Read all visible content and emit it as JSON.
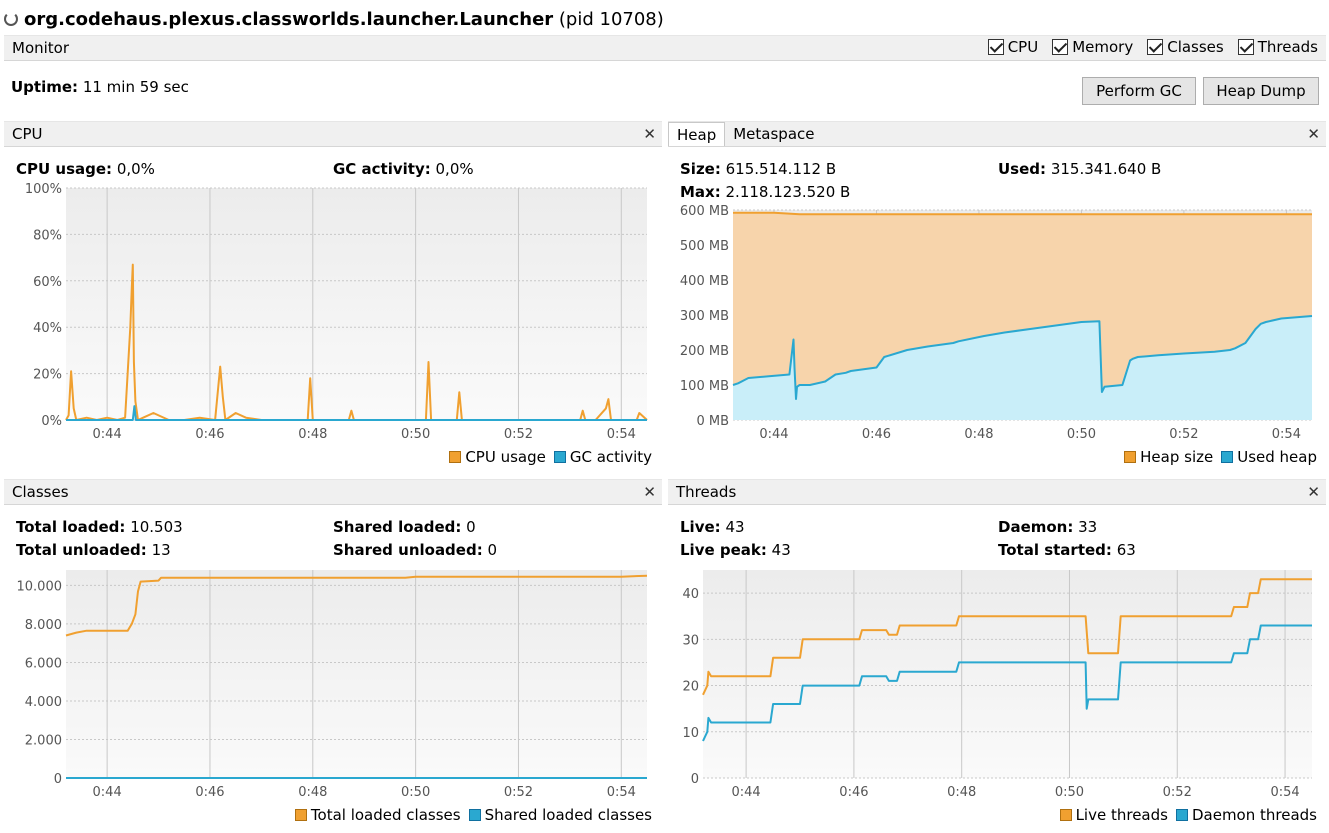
{
  "window": {
    "process": "org.codehaus.plexus.classworlds.launcher.Launcher",
    "pid": "(pid 10708)"
  },
  "monitor": {
    "title": "Monitor",
    "checks": [
      {
        "label": "CPU",
        "checked": true
      },
      {
        "label": "Memory",
        "checked": true
      },
      {
        "label": "Classes",
        "checked": true
      },
      {
        "label": "Threads",
        "checked": true
      }
    ],
    "uptime_label": "Uptime:",
    "uptime_value": "11 min 59 sec",
    "perform_gc": "Perform GC",
    "heap_dump": "Heap Dump"
  },
  "colors": {
    "orange": "#f0a030",
    "blue": "#2aa8d0"
  },
  "cpu": {
    "title": "CPU",
    "usage_label": "CPU usage:",
    "usage_value": "0,0%",
    "gc_label": "GC activity:",
    "gc_value": "0,0%",
    "legend": [
      "CPU usage",
      "GC activity"
    ]
  },
  "heap": {
    "tabs": [
      "Heap",
      "Metaspace"
    ],
    "size_label": "Size:",
    "size_value": "615.514.112 B",
    "max_label": "Max:",
    "max_value": "2.118.123.520 B",
    "used_label": "Used:",
    "used_value": "315.341.640 B",
    "legend": [
      "Heap size",
      "Used heap"
    ]
  },
  "classes": {
    "title": "Classes",
    "total_loaded_label": "Total loaded:",
    "total_loaded_value": "10.503",
    "total_unloaded_label": "Total unloaded:",
    "total_unloaded_value": "13",
    "shared_loaded_label": "Shared loaded:",
    "shared_loaded_value": "0",
    "shared_unloaded_label": "Shared unloaded:",
    "shared_unloaded_value": "0",
    "legend": [
      "Total loaded classes",
      "Shared loaded classes"
    ]
  },
  "threads": {
    "title": "Threads",
    "live_label": "Live:",
    "live_value": "43",
    "live_peak_label": "Live peak:",
    "live_peak_value": "43",
    "daemon_label": "Daemon:",
    "daemon_value": "33",
    "total_started_label": "Total started:",
    "total_started_value": "63",
    "legend": [
      "Live threads",
      "Daemon threads"
    ]
  },
  "chart_data": [
    {
      "type": "line",
      "title": "CPU",
      "x_tick_labels": [
        "0:44",
        "0:46",
        "0:48",
        "0:50",
        "0:52",
        "0:54"
      ],
      "y_tick_labels": [
        "0%",
        "20%",
        "40%",
        "60%",
        "80%",
        "100%"
      ],
      "ylim": [
        0,
        100
      ],
      "xlim_min": [
        43.2,
        54.5
      ],
      "series": [
        {
          "name": "CPU usage",
          "color": "#f0a030",
          "x": [
            43.2,
            43.25,
            43.3,
            43.35,
            43.4,
            43.6,
            43.8,
            44.0,
            44.2,
            44.35,
            44.45,
            44.48,
            44.5,
            44.52,
            44.55,
            44.6,
            44.7,
            44.9,
            45.2,
            45.5,
            45.8,
            46.1,
            46.2,
            46.25,
            46.3,
            46.5,
            46.7,
            47.0,
            47.5,
            47.9,
            47.95,
            48.0,
            48.5,
            48.7,
            48.75,
            48.8,
            49.5,
            50.0,
            50.2,
            50.25,
            50.3,
            50.6,
            50.8,
            50.85,
            50.9,
            51.5,
            52.0,
            52.5,
            53.0,
            53.2,
            53.25,
            53.3,
            53.5,
            53.7,
            53.75,
            53.8,
            54.0,
            54.3,
            54.35,
            54.5
          ],
          "y": [
            0,
            2,
            21,
            5,
            0,
            1,
            0,
            1,
            0,
            1,
            40,
            57,
            67,
            25,
            8,
            0,
            1,
            3,
            0,
            0,
            1,
            0,
            23,
            10,
            0,
            3,
            1,
            0,
            0,
            0,
            18,
            0,
            0,
            0,
            4,
            0,
            0,
            0,
            0,
            25,
            0,
            0,
            0,
            12,
            0,
            0,
            0,
            0,
            0,
            0,
            4,
            0,
            0,
            5,
            9,
            0,
            0,
            0,
            3,
            0
          ]
        },
        {
          "name": "GC activity",
          "color": "#2aa8d0",
          "x": [
            43.2,
            44.5,
            44.53,
            44.56,
            44.6,
            54.5
          ],
          "y": [
            0,
            0,
            6,
            0,
            0,
            0
          ]
        }
      ]
    },
    {
      "type": "area",
      "title": "Heap",
      "x_tick_labels": [
        "0:44",
        "0:46",
        "0:48",
        "0:50",
        "0:52",
        "0:54"
      ],
      "y_tick_labels": [
        "0 MB",
        "100 MB",
        "200 MB",
        "300 MB",
        "400 MB",
        "500 MB",
        "600 MB"
      ],
      "ylim": [
        0,
        600
      ],
      "series": [
        {
          "name": "Heap size",
          "color": "#f0a030",
          "x": [
            43.2,
            44.0,
            44.5,
            54.5
          ],
          "y": [
            592,
            592,
            588,
            588
          ]
        },
        {
          "name": "Used heap",
          "color": "#2aa8d0",
          "x": [
            43.2,
            43.3,
            43.5,
            43.9,
            44.3,
            44.38,
            44.4,
            44.43,
            44.45,
            44.5,
            44.7,
            45.0,
            45.2,
            45.4,
            45.5,
            46.0,
            46.15,
            46.6,
            47.0,
            47.5,
            47.6,
            48.1,
            48.5,
            49.0,
            49.5,
            50.0,
            50.35,
            50.4,
            50.45,
            50.8,
            50.95,
            51.0,
            51.1,
            51.5,
            52.0,
            52.6,
            52.9,
            53.0,
            53.2,
            53.4,
            53.5,
            53.6,
            53.9,
            54.5
          ],
          "y": [
            100,
            105,
            120,
            125,
            130,
            230,
            150,
            60,
            95,
            100,
            100,
            110,
            130,
            135,
            140,
            150,
            180,
            200,
            210,
            220,
            225,
            240,
            250,
            260,
            270,
            280,
            282,
            80,
            95,
            100,
            170,
            175,
            180,
            185,
            190,
            195,
            200,
            205,
            220,
            260,
            275,
            280,
            290,
            297
          ]
        }
      ]
    },
    {
      "type": "line",
      "title": "Classes",
      "x_tick_labels": [
        "0:44",
        "0:46",
        "0:48",
        "0:50",
        "0:52",
        "0:54"
      ],
      "y_tick_labels": [
        "0",
        "2.000",
        "4.000",
        "6.000",
        "8.000",
        "10.000"
      ],
      "ylim": [
        0,
        10800
      ],
      "series": [
        {
          "name": "Total loaded classes",
          "color": "#f0a030",
          "x": [
            43.2,
            43.4,
            43.6,
            44.4,
            44.48,
            44.55,
            44.6,
            44.65,
            45.0,
            45.05,
            46.0,
            49.8,
            50.0,
            54.0,
            54.5
          ],
          "y": [
            7400,
            7550,
            7650,
            7650,
            8000,
            8500,
            9700,
            10200,
            10250,
            10400,
            10400,
            10400,
            10450,
            10450,
            10503
          ]
        },
        {
          "name": "Shared loaded classes",
          "color": "#2aa8d0",
          "x": [
            43.2,
            54.5
          ],
          "y": [
            0,
            0
          ]
        }
      ]
    },
    {
      "type": "line",
      "title": "Threads",
      "x_tick_labels": [
        "0:44",
        "0:46",
        "0:48",
        "0:50",
        "0:52",
        "0:54"
      ],
      "y_tick_labels": [
        "0",
        "10",
        "20",
        "30",
        "40"
      ],
      "ylim": [
        0,
        45
      ],
      "series": [
        {
          "name": "Live threads",
          "color": "#f0a030",
          "x": [
            43.2,
            43.28,
            43.3,
            43.35,
            43.5,
            44.45,
            44.5,
            45.0,
            45.05,
            46.1,
            46.15,
            46.6,
            46.65,
            46.8,
            46.85,
            47.9,
            47.95,
            50.3,
            50.35,
            50.9,
            50.95,
            52.7,
            52.8,
            53.0,
            53.05,
            53.3,
            53.35,
            53.5,
            53.55,
            54.5
          ],
          "y": [
            18,
            20,
            23,
            22,
            22,
            22,
            26,
            26,
            30,
            30,
            32,
            32,
            31,
            31,
            33,
            33,
            35,
            35,
            27,
            27,
            35,
            35,
            35,
            35,
            37,
            37,
            40,
            40,
            43,
            43
          ]
        },
        {
          "name": "Daemon threads",
          "color": "#2aa8d0",
          "x": [
            43.2,
            43.28,
            43.3,
            43.35,
            43.5,
            44.45,
            44.5,
            45.0,
            45.05,
            46.1,
            46.15,
            46.6,
            46.65,
            46.8,
            46.85,
            47.9,
            47.95,
            50.3,
            50.32,
            50.35,
            50.9,
            50.95,
            52.7,
            52.8,
            53.0,
            53.05,
            53.3,
            53.35,
            53.5,
            53.55,
            54.5
          ],
          "y": [
            8,
            10,
            13,
            12,
            12,
            12,
            16,
            16,
            20,
            20,
            22,
            22,
            21,
            21,
            23,
            23,
            25,
            25,
            15,
            17,
            17,
            25,
            25,
            25,
            25,
            27,
            27,
            30,
            30,
            33,
            33
          ]
        }
      ]
    }
  ]
}
